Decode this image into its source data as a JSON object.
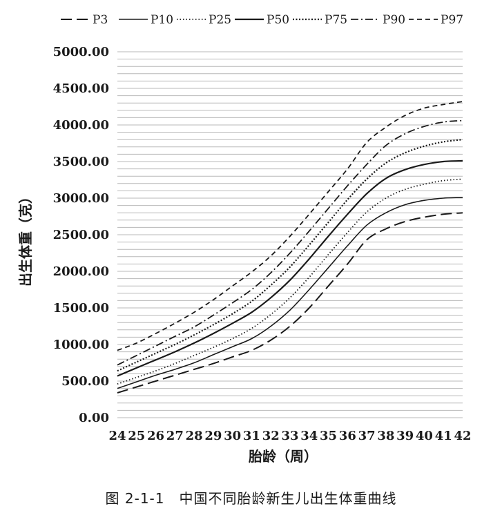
{
  "caption": "图 2-1-1　中国不同胎龄新生儿出生体重曲线",
  "chart_data": {
    "type": "line",
    "xlabel": "胎龄（周）",
    "ylabel": "出生体重（克）",
    "x": [
      24,
      25,
      26,
      27,
      28,
      29,
      30,
      31,
      32,
      33,
      34,
      35,
      36,
      37,
      38,
      39,
      40,
      41,
      42
    ],
    "x_tick_labels": [
      "24",
      "25",
      "26",
      "27",
      "28",
      "29",
      "30",
      "31",
      "32",
      "33",
      "34",
      "35",
      "36",
      "37",
      "38",
      "39",
      "40",
      "41",
      "42"
    ],
    "ylim": [
      0,
      5000
    ],
    "y_ticks": [
      0,
      500,
      1000,
      1500,
      2000,
      2500,
      3000,
      3500,
      4000,
      4500,
      5000
    ],
    "y_tick_labels": [
      "0.00",
      "500.00",
      "1000.00",
      "1500.00",
      "2000.00",
      "2500.00",
      "3000.00",
      "3500.00",
      "4000.00",
      "4500.00",
      "5000.00"
    ],
    "grid": true,
    "legend_position": "top",
    "series": [
      {
        "name": "P3",
        "dash": "long-dash",
        "values": [
          340,
          420,
          500,
          580,
          660,
          740,
          830,
          920,
          1060,
          1250,
          1500,
          1800,
          2100,
          2430,
          2580,
          2680,
          2740,
          2780,
          2800
        ]
      },
      {
        "name": "P10",
        "dash": "solid-thin",
        "values": [
          400,
          490,
          580,
          660,
          750,
          860,
          970,
          1080,
          1250,
          1470,
          1750,
          2050,
          2350,
          2630,
          2800,
          2910,
          2970,
          3000,
          3010
        ]
      },
      {
        "name": "P25",
        "dash": "dotted",
        "values": [
          460,
          550,
          640,
          740,
          850,
          960,
          1080,
          1220,
          1410,
          1640,
          1920,
          2230,
          2530,
          2810,
          3000,
          3120,
          3190,
          3240,
          3260
        ]
      },
      {
        "name": "P50",
        "dash": "solid",
        "values": [
          570,
          680,
          790,
          900,
          1020,
          1150,
          1290,
          1440,
          1640,
          1880,
          2170,
          2480,
          2780,
          3060,
          3270,
          3390,
          3460,
          3500,
          3510
        ]
      },
      {
        "name": "P75",
        "dash": "dense-dot",
        "values": [
          640,
          760,
          880,
          1000,
          1130,
          1270,
          1420,
          1590,
          1810,
          2060,
          2360,
          2670,
          2980,
          3260,
          3480,
          3620,
          3710,
          3770,
          3800
        ]
      },
      {
        "name": "P90",
        "dash": "dash-dot",
        "values": [
          720,
          850,
          980,
          1110,
          1240,
          1400,
          1570,
          1750,
          1980,
          2250,
          2550,
          2860,
          3170,
          3460,
          3720,
          3880,
          3980,
          4040,
          4060
        ]
      },
      {
        "name": "P97",
        "dash": "short-dash",
        "values": [
          920,
          1020,
          1150,
          1290,
          1440,
          1610,
          1800,
          1990,
          2210,
          2480,
          2780,
          3090,
          3400,
          3760,
          3970,
          4130,
          4230,
          4280,
          4320
        ]
      }
    ]
  }
}
